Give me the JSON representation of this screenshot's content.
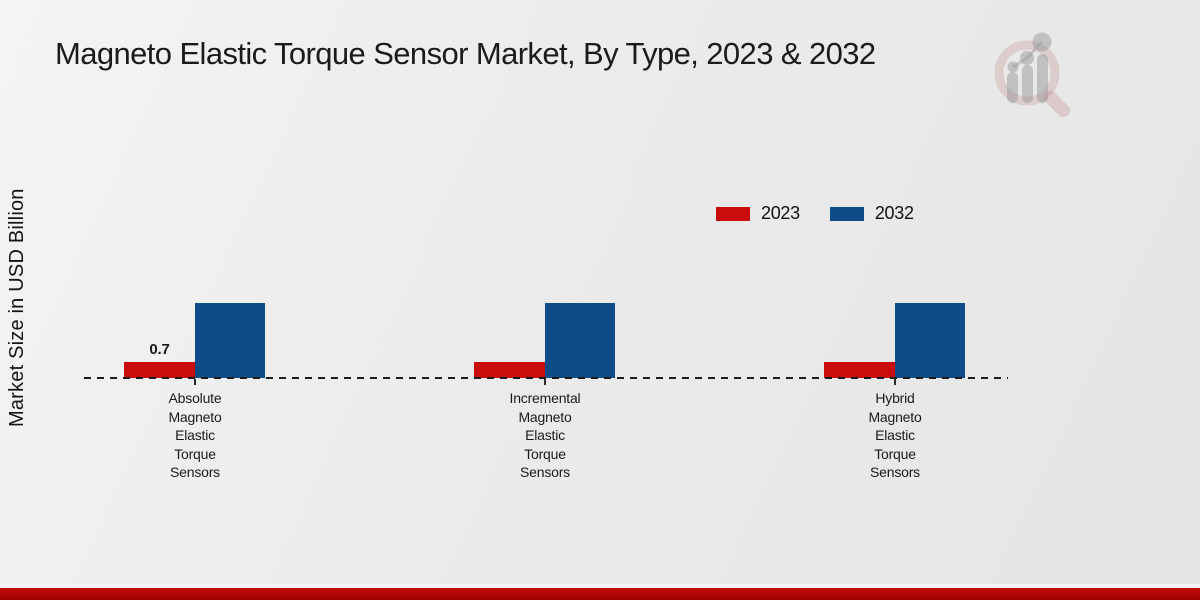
{
  "title": "Magneto Elastic Torque Sensor Market, By Type, 2023 & 2032",
  "ylabel": "Market Size in USD Billion",
  "legend": [
    {
      "label": "2023",
      "color": "#c90c0c"
    },
    {
      "label": "2032",
      "color": "#0e4c88"
    }
  ],
  "colors": {
    "series_2023": "#c90c0c",
    "series_2032": "#0e4c88",
    "footer_band": "#b10404",
    "axis_dash": "#1c1c1c",
    "text": "#1a1a1a"
  },
  "watermark_icon": "magnifier-bar-chart-logo",
  "chart_data": {
    "type": "bar",
    "title": "Magneto Elastic Torque Sensor Market, By Type, 2023 & 2032",
    "xlabel": "",
    "ylabel": "Market Size in USD Billion",
    "categories": [
      "Absolute Magneto Elastic Torque Sensors",
      "Incremental Magneto Elastic Torque Sensors",
      "Hybrid Magneto Elastic Torque Sensors"
    ],
    "category_display": [
      "Absolute\nMagneto\nElastic\nTorque\nSensors",
      "Incremental\nMagneto\nElastic\nTorque\nSensors",
      "Hybrid\nMagneto\nElastic\nTorque\nSensors"
    ],
    "series": [
      {
        "name": "2023",
        "color": "#c90c0c",
        "values": [
          0.7,
          0.7,
          0.7
        ],
        "data_labels": [
          "0.7",
          "",
          ""
        ]
      },
      {
        "name": "2032",
        "color": "#0e4c88",
        "values": [
          3.3,
          3.3,
          3.3
        ],
        "data_labels": [
          "",
          "",
          ""
        ]
      }
    ],
    "ylim": [
      0,
      4.5
    ],
    "baseline": 0,
    "grid": false,
    "axis_line_style": "dashed",
    "legend_position": "upper-right"
  }
}
